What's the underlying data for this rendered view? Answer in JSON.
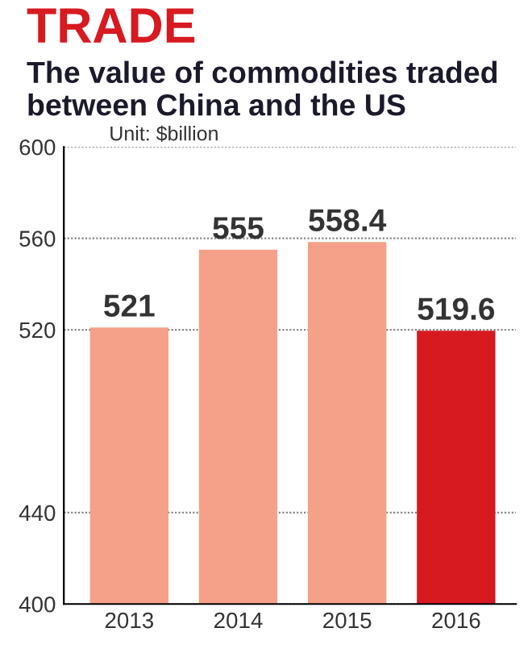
{
  "chart_data": {
    "type": "bar",
    "title": "TRADE",
    "subtitle": "The value of commodities traded between China and the US",
    "annotations": [
      "Unit: $billion"
    ],
    "categories": [
      "2013",
      "2014",
      "2015",
      "2016"
    ],
    "values": [
      521,
      555,
      558.4,
      519.6
    ],
    "colors": [
      "#f5a088",
      "#f5a088",
      "#f5a088",
      "#d71920"
    ],
    "ylim": [
      400,
      600
    ],
    "yticks": [
      400,
      440,
      520,
      560,
      600
    ],
    "grid": "y",
    "data_labels": true,
    "legend": false
  }
}
